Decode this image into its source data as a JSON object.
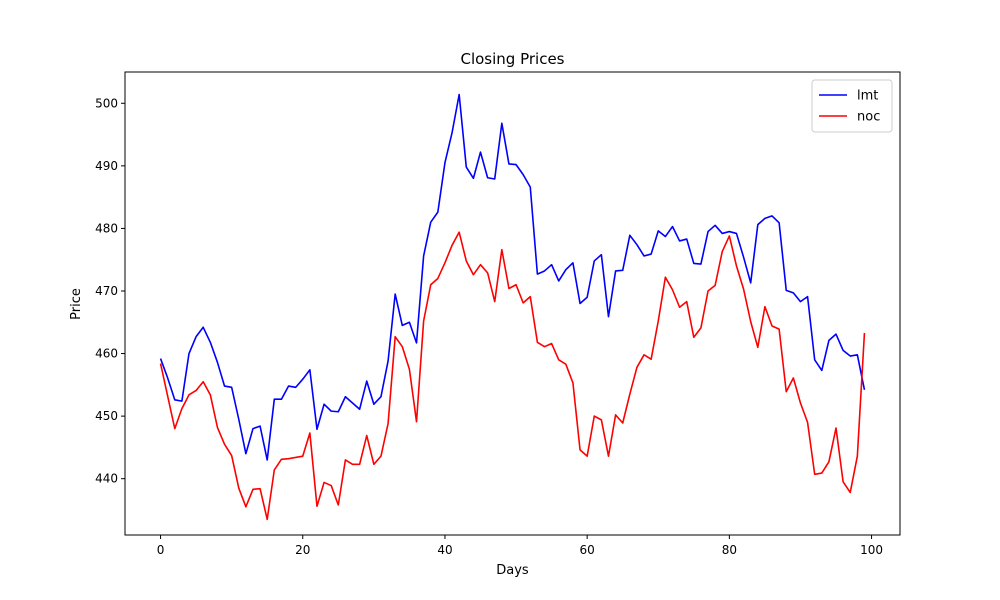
{
  "chart_data": {
    "type": "line",
    "title": "Closing Prices",
    "xlabel": "Days",
    "ylabel": "Price",
    "xlim": [
      -5,
      104
    ],
    "ylim": [
      431,
      505
    ],
    "xticks": [
      0,
      20,
      40,
      60,
      80,
      100
    ],
    "yticks": [
      440,
      450,
      460,
      470,
      480,
      490,
      500
    ],
    "grid": false,
    "legend_position": "top-right",
    "series": [
      {
        "name": "lmt",
        "color": "#0000ff",
        "values": [
          459.2,
          456.1,
          452.6,
          452.4,
          460.0,
          462.7,
          464.2,
          461.8,
          458.6,
          454.8,
          454.6,
          449.5,
          444.0,
          448.0,
          448.4,
          443.0,
          452.7,
          452.7,
          454.8,
          454.6,
          455.9,
          457.4,
          447.9,
          451.9,
          450.8,
          450.7,
          453.1,
          452.1,
          451.1,
          455.6,
          451.9,
          453.1,
          458.8,
          469.5,
          464.5,
          465.0,
          461.7,
          475.6,
          481.0,
          482.6,
          490.5,
          495.3,
          501.4,
          489.8,
          488.0,
          492.2,
          488.1,
          487.9,
          496.8,
          490.3,
          490.2,
          488.6,
          486.6,
          472.7,
          473.2,
          474.2,
          471.6,
          473.4,
          474.5,
          468.0,
          469.0,
          474.8,
          475.8,
          465.9,
          473.2,
          473.3,
          478.9,
          477.4,
          475.6,
          475.9,
          479.6,
          478.7,
          480.3,
          478.0,
          478.3,
          474.4,
          474.3,
          479.5,
          480.5,
          479.2,
          479.5,
          479.2,
          475.4,
          471.3,
          480.6,
          481.6,
          482.0,
          480.9,
          470.1,
          469.7,
          468.3,
          469.1,
          459.0,
          457.3,
          462.1,
          463.1,
          460.5,
          459.6,
          459.8,
          454.2
        ]
      },
      {
        "name": "noc",
        "color": "#ff0000",
        "values": [
          458.4,
          453.2,
          448.0,
          451.2,
          453.4,
          454.1,
          455.5,
          453.4,
          448.2,
          445.5,
          443.7,
          438.5,
          435.5,
          438.3,
          438.4,
          433.5,
          441.4,
          443.1,
          443.2,
          443.4,
          443.6,
          447.3,
          435.6,
          439.4,
          438.9,
          435.8,
          443.0,
          442.3,
          442.3,
          446.9,
          442.3,
          443.6,
          448.8,
          462.7,
          461.1,
          457.5,
          449.1,
          465.2,
          471.0,
          472.0,
          474.5,
          477.3,
          479.4,
          474.8,
          472.6,
          474.2,
          472.9,
          468.3,
          476.6,
          470.4,
          471.0,
          468.1,
          469.1,
          461.8,
          461.1,
          461.6,
          459.0,
          458.3,
          455.3,
          444.6,
          443.6,
          450.0,
          449.4,
          443.6,
          450.2,
          448.9,
          453.5,
          457.8,
          459.8,
          459.1,
          465.2,
          472.2,
          470.2,
          467.4,
          468.3,
          462.6,
          464.1,
          470.0,
          470.9,
          476.3,
          478.8,
          474.0,
          470.3,
          465.1,
          461.0,
          467.5,
          464.4,
          463.9,
          453.9,
          456.1,
          452.1,
          449.0,
          440.7,
          440.9,
          442.7,
          448.1,
          439.5,
          437.8,
          443.6,
          463.3
        ]
      }
    ]
  }
}
